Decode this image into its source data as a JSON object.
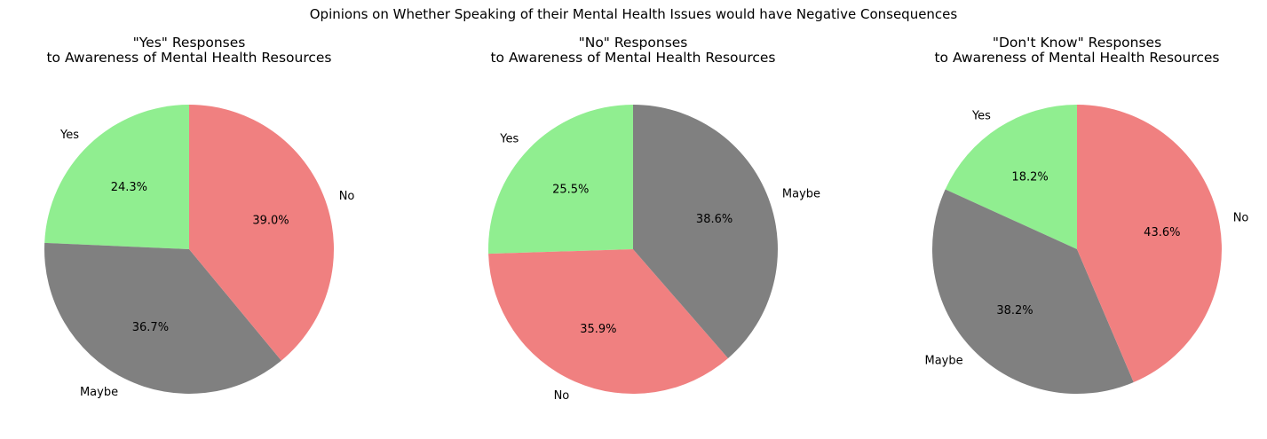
{
  "figure": {
    "title": "Opinions on Whether Speaking of their Mental Health Issues would have Negative Consequences"
  },
  "colors": {
    "Yes": "#90ee90",
    "No": "#f08080",
    "Maybe": "#808080"
  },
  "chart_data": [
    {
      "type": "pie",
      "title_line1": "\"Yes\" Responses",
      "title_line2": "to Awareness of Mental Health Resources",
      "labels": [
        "Yes",
        "Maybe",
        "No"
      ],
      "values": [
        24.3,
        36.7,
        39.0
      ],
      "pct_labels": [
        "24.3%",
        "36.7%",
        "39.0%"
      ]
    },
    {
      "type": "pie",
      "title_line1": "\"No\" Responses",
      "title_line2": "to Awareness of Mental Health Resources",
      "labels": [
        "Yes",
        "No",
        "Maybe"
      ],
      "values": [
        25.5,
        35.9,
        38.6
      ],
      "pct_labels": [
        "25.5%",
        "35.9%",
        "38.6%"
      ]
    },
    {
      "type": "pie",
      "title_line1": "\"Don't Know\" Responses",
      "title_line2": "to Awareness of Mental Health Resources",
      "labels": [
        "Yes",
        "Maybe",
        "No"
      ],
      "values": [
        18.2,
        38.2,
        43.6
      ],
      "pct_labels": [
        "18.2%",
        "38.2%",
        "43.6%"
      ]
    }
  ]
}
